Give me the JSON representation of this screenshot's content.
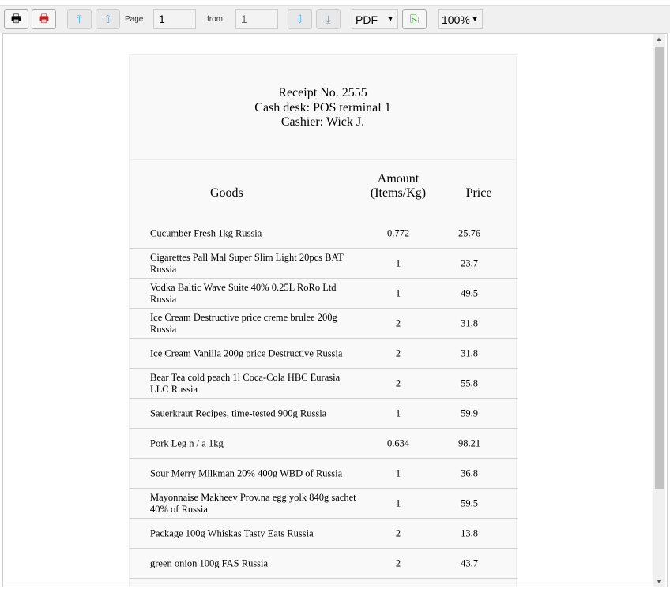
{
  "toolbar": {
    "page_label": "Page",
    "page_value": "1",
    "from_label": "from",
    "from_value": "1",
    "format": "PDF",
    "zoom": "100%",
    "icons": [
      "printer-icon",
      "print-pdf-icon",
      "first-page-icon",
      "previous-page-icon",
      "next-page-icon",
      "last-page-icon",
      "export-icon"
    ]
  },
  "receipt": {
    "title": "Receipt No. 2555",
    "cash_desk": "Cash desk: POS terminal 1",
    "cashier": "Cashier: Wick J.",
    "columns": {
      "goods": "Goods",
      "amount_1": "Amount",
      "amount_2": "(Items/Kg)",
      "price": "Price"
    },
    "items": [
      {
        "goods": "Cucumber Fresh 1kg Russia",
        "amount": "0.772",
        "price": "25.76"
      },
      {
        "goods": "Cigarettes Pall Mal Super Slim Light 20pcs BAT Russia",
        "amount": "1",
        "price": "23.7"
      },
      {
        "goods": "Vodka Baltic Wave Suite 40% 0.25L RoRo Ltd Russia",
        "amount": "1",
        "price": "49.5"
      },
      {
        "goods": "Ice Cream Destructive price creme brulee 200g Russia",
        "amount": "2",
        "price": "31.8"
      },
      {
        "goods": "Ice Cream Vanilla 200g price Destructive Russia",
        "amount": "2",
        "price": "31.8"
      },
      {
        "goods": "Bear Tea cold peach 1l Coca-Cola HBC Eurasia LLC Russia",
        "amount": "2",
        "price": "55.8"
      },
      {
        "goods": "Sauerkraut Recipes, time-tested 900g Russia",
        "amount": "1",
        "price": "59.9"
      },
      {
        "goods": "Pork Leg n / a 1kg",
        "amount": "0.634",
        "price": "98.21"
      },
      {
        "goods": "Sour Merry Milkman 20% 400g WBD of Russia",
        "amount": "1",
        "price": "36.8"
      },
      {
        "goods": "Mayonnaise Makheev Prov.na egg yolk 840g sachet 40% of Russia",
        "amount": "1",
        "price": "59.5"
      },
      {
        "goods": "Package 100g Whiskas Tasty Eats Russia",
        "amount": "2",
        "price": "13.8"
      },
      {
        "goods": "green onion 100g FAS Russia",
        "amount": "2",
        "price": "43.7"
      }
    ]
  }
}
